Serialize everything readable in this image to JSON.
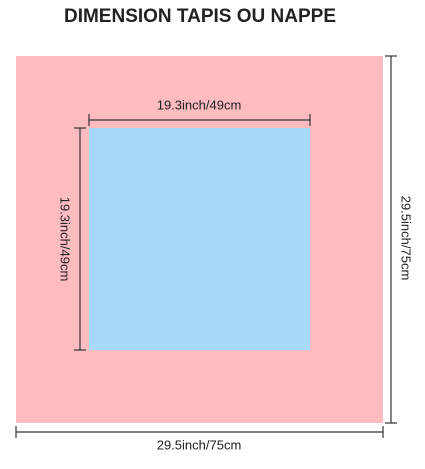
{
  "title": "DIMENSION TAPIS OU NAPPE",
  "inner": {
    "width_label": "19.3inch/49cm",
    "height_label": "19.3inch/49cm"
  },
  "outer": {
    "width_label": "29.5inch/75cm",
    "height_label": "29.5inch/75cm"
  }
}
